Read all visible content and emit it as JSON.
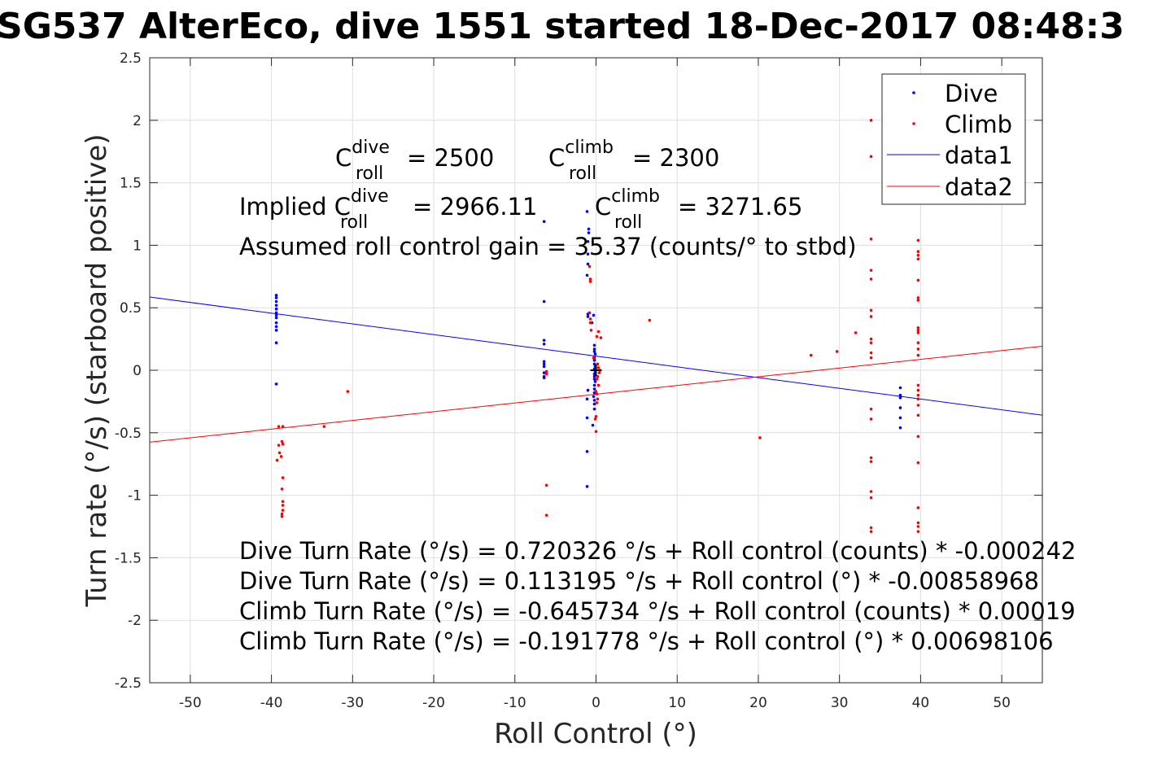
{
  "chart_data": {
    "type": "scatter",
    "title": "SG537 AlterEco, dive 1551 started 18-Dec-2017 08:48:3",
    "xlabel": "Roll Control (°)",
    "ylabel": "Turn rate (°/s) (starboard positive)",
    "xlim": [
      -55,
      55
    ],
    "ylim": [
      -2.5,
      2.5
    ],
    "xticks": [
      -50,
      -40,
      -30,
      -20,
      -10,
      0,
      10,
      20,
      30,
      40,
      50
    ],
    "yticks": [
      -2.5,
      -2,
      -1.5,
      -1,
      -0.5,
      0,
      0.5,
      1,
      1.5,
      2,
      2.5
    ],
    "xtick_labels": [
      "-50",
      "-40",
      "-30",
      "-20",
      "-10",
      "0",
      "10",
      "20",
      "30",
      "40",
      "50"
    ],
    "ytick_labels": [
      "-2.5",
      "-2",
      "-1.5",
      "-1",
      "-0.5",
      "0",
      "0.5",
      "1",
      "1.5",
      "2",
      "2.5"
    ],
    "grid": true,
    "legend_position": "top-right",
    "series": [
      {
        "name": "Dive",
        "kind": "scatter",
        "color": "#0000ff",
        "points": [
          [
            -39.4,
            0.6
          ],
          [
            -39.4,
            0.58
          ],
          [
            -39.4,
            0.55
          ],
          [
            -39.4,
            0.52
          ],
          [
            -39.4,
            0.49
          ],
          [
            -39.4,
            0.46
          ],
          [
            -39.4,
            0.44
          ],
          [
            -39.4,
            0.42
          ],
          [
            -39.4,
            0.38
          ],
          [
            -39.4,
            0.35
          ],
          [
            -39.4,
            0.32
          ],
          [
            -39.4,
            0.22
          ],
          [
            -39.4,
            -0.11
          ],
          [
            -6.4,
            1.19
          ],
          [
            -6.4,
            0.55
          ],
          [
            -6.4,
            0.24
          ],
          [
            -6.4,
            0.21
          ],
          [
            -6.4,
            0.07
          ],
          [
            -6.4,
            0.05
          ],
          [
            -6.4,
            0.03
          ],
          [
            -6.4,
            -0.02
          ],
          [
            -6.4,
            -0.05
          ],
          [
            -6.4,
            -0.06
          ],
          [
            -1.1,
            1.27
          ],
          [
            -0.9,
            1.13
          ],
          [
            -0.9,
            1.1
          ],
          [
            -1.0,
            1.03
          ],
          [
            -1.0,
            0.93
          ],
          [
            -1.0,
            0.85
          ],
          [
            -1.1,
            0.76
          ],
          [
            -1.0,
            0.45
          ],
          [
            -1.0,
            0.43
          ],
          [
            -0.3,
            0.44
          ],
          [
            -0.5,
            0.38
          ],
          [
            -1.0,
            -0.16
          ],
          [
            -1.1,
            -0.23
          ],
          [
            -1.1,
            -0.38
          ],
          [
            -1.1,
            -0.65
          ],
          [
            -1.1,
            -0.93
          ],
          [
            -0.2,
            0.2
          ],
          [
            -0.2,
            0.17
          ],
          [
            -0.2,
            0.15
          ],
          [
            -0.1,
            0.13
          ],
          [
            -0.2,
            0.1
          ],
          [
            -0.2,
            0.08
          ],
          [
            -0.2,
            0.05
          ],
          [
            -0.1,
            0.03
          ],
          [
            -0.2,
            0.01
          ],
          [
            -0.1,
            -0.01
          ],
          [
            -0.2,
            -0.03
          ],
          [
            -0.2,
            -0.05
          ],
          [
            -0.2,
            -0.07
          ],
          [
            -0.1,
            -0.09
          ],
          [
            -0.2,
            -0.12
          ],
          [
            -0.2,
            -0.15
          ],
          [
            -0.2,
            -0.18
          ],
          [
            -0.3,
            -0.21
          ],
          [
            -0.2,
            -0.24
          ],
          [
            -0.2,
            -0.27
          ],
          [
            -0.2,
            -0.31
          ],
          [
            -0.4,
            -0.44
          ],
          [
            37.5,
            -0.14
          ],
          [
            37.5,
            -0.2
          ],
          [
            37.5,
            -0.22
          ],
          [
            37.5,
            -0.3
          ],
          [
            37.5,
            -0.38
          ],
          [
            37.5,
            -0.46
          ]
        ]
      },
      {
        "name": "Climb",
        "kind": "scatter",
        "color": "#ff0000",
        "points": [
          [
            -39.1,
            -0.45
          ],
          [
            -38.6,
            -0.45
          ],
          [
            -39.1,
            -0.6
          ],
          [
            -38.7,
            -0.57
          ],
          [
            -38.6,
            -0.59
          ],
          [
            -39.0,
            -0.66
          ],
          [
            -38.8,
            -0.69
          ],
          [
            -39.3,
            -0.72
          ],
          [
            -38.6,
            -0.86
          ],
          [
            -38.7,
            -0.95
          ],
          [
            -38.6,
            -1.05
          ],
          [
            -38.6,
            -1.08
          ],
          [
            -38.6,
            -1.12
          ],
          [
            -38.7,
            -1.15
          ],
          [
            -38.7,
            -1.17
          ],
          [
            -33.5,
            -0.45
          ],
          [
            -30.6,
            -0.17
          ],
          [
            -6.1,
            -0.01
          ],
          [
            -6.1,
            -0.03
          ],
          [
            -6.1,
            -0.92
          ],
          [
            -6.1,
            -1.16
          ],
          [
            -0.8,
            0.83
          ],
          [
            -0.7,
            0.73
          ],
          [
            -0.7,
            0.71
          ],
          [
            -0.8,
            0.46
          ],
          [
            -0.7,
            0.41
          ],
          [
            -0.7,
            0.38
          ],
          [
            -0.6,
            0.32
          ],
          [
            0.3,
            0.31
          ],
          [
            0.6,
            0.26
          ],
          [
            0.1,
            0.27
          ],
          [
            -0.3,
            0.1
          ],
          [
            0.2,
            0.05
          ],
          [
            0.3,
            0.02
          ],
          [
            0.5,
            0.0
          ],
          [
            0.4,
            -0.02
          ],
          [
            0.2,
            -0.05
          ],
          [
            0.1,
            -0.07
          ],
          [
            0.3,
            -0.12
          ],
          [
            0.0,
            -0.17
          ],
          [
            0.1,
            -0.19
          ],
          [
            0.2,
            -0.23
          ],
          [
            0.1,
            -0.26
          ],
          [
            0.0,
            -0.37
          ],
          [
            -0.1,
            -0.39
          ],
          [
            0.0,
            -0.49
          ],
          [
            6.6,
            0.4
          ],
          [
            20.2,
            -0.54
          ],
          [
            26.5,
            0.12
          ],
          [
            29.7,
            0.15
          ],
          [
            32.0,
            0.3
          ],
          [
            33.9,
            2.0
          ],
          [
            33.9,
            1.71
          ],
          [
            33.9,
            1.05
          ],
          [
            33.9,
            0.8
          ],
          [
            33.9,
            0.73
          ],
          [
            33.9,
            0.48
          ],
          [
            33.9,
            0.43
          ],
          [
            33.9,
            0.25
          ],
          [
            33.9,
            0.22
          ],
          [
            33.9,
            0.14
          ],
          [
            33.9,
            0.1
          ],
          [
            33.9,
            -0.31
          ],
          [
            33.9,
            -0.39
          ],
          [
            33.9,
            -0.7
          ],
          [
            33.9,
            -0.73
          ],
          [
            33.9,
            -0.97
          ],
          [
            33.9,
            -1.02
          ],
          [
            33.9,
            -1.26
          ],
          [
            33.9,
            -1.29
          ],
          [
            39.7,
            1.04
          ],
          [
            39.7,
            0.95
          ],
          [
            39.7,
            0.92
          ],
          [
            39.7,
            0.89
          ],
          [
            39.7,
            0.72
          ],
          [
            39.7,
            0.58
          ],
          [
            39.7,
            0.56
          ],
          [
            39.7,
            0.34
          ],
          [
            39.7,
            0.32
          ],
          [
            39.7,
            0.3
          ],
          [
            39.7,
            0.22
          ],
          [
            39.7,
            0.17
          ],
          [
            39.7,
            0.12
          ],
          [
            39.7,
            -0.12
          ],
          [
            39.7,
            -0.16
          ],
          [
            39.7,
            -0.2
          ],
          [
            39.7,
            -0.23
          ],
          [
            39.7,
            -0.28
          ],
          [
            39.7,
            -0.36
          ],
          [
            39.7,
            -0.53
          ],
          [
            39.7,
            -0.74
          ],
          [
            39.7,
            -1.1
          ],
          [
            39.7,
            -1.22
          ],
          [
            39.7,
            -1.25
          ],
          [
            39.7,
            -1.29
          ]
        ]
      },
      {
        "name": "data1",
        "kind": "line",
        "color": "#0000ff",
        "intercept": 0.113195,
        "slope": -0.00858968
      },
      {
        "name": "data2",
        "kind": "line",
        "color": "#ff0000",
        "intercept": -0.191778,
        "slope": 0.00698106
      }
    ],
    "origin_marker": [
      0,
      0
    ],
    "annotations": {
      "c_roll_dive": {
        "prefix": "C",
        "sup": "dive",
        "sub": "roll",
        "value": "= 2500"
      },
      "c_roll_climb": {
        "prefix": "C",
        "sup": "climb",
        "sub": "roll",
        "value": "= 2300"
      },
      "implied_dive": {
        "prefix": "Implied C",
        "sup": "dive",
        "sub": "roll",
        "value": "= 2966.11"
      },
      "implied_climb": {
        "prefix": "C",
        "sup": "climb",
        "sub": "roll",
        "value": "= 3271.65"
      },
      "gain": "Assumed roll control gain = 35.37 (counts/° to stbd)",
      "fit_lines": [
        "Dive Turn Rate (°/s) = 0.720326 °/s + Roll control (counts) * -0.000242",
        "Dive Turn Rate (°/s) = 0.113195 °/s + Roll control (°) * -0.00858968",
        "Climb Turn Rate (°/s) = -0.645734 °/s + Roll control (counts) * 0.00019",
        "Climb Turn Rate (°/s) = -0.191778 °/s + Roll control (°) * 0.00698106"
      ]
    }
  }
}
